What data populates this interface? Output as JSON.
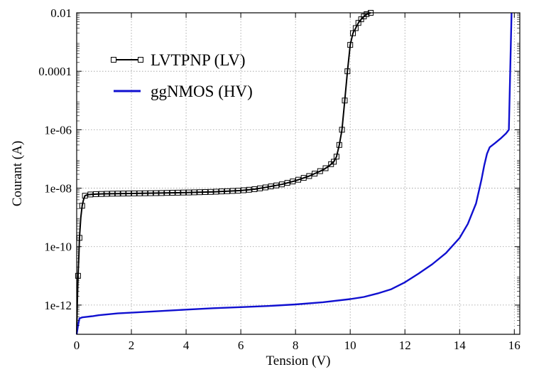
{
  "chart_data": {
    "type": "line",
    "xlabel": "Tension (V)",
    "ylabel": "Courant (A)",
    "x_scale": "linear",
    "y_scale": "log",
    "xlim": [
      0,
      16.2
    ],
    "ylim": [
      1e-13,
      0.01
    ],
    "x_ticks": [
      0,
      2,
      4,
      6,
      8,
      10,
      12,
      14,
      16
    ],
    "x_tick_labels": [
      "0",
      "2",
      "4",
      "6",
      "8",
      "10",
      "12",
      "14",
      "16"
    ],
    "y_ticks": [
      1e-12,
      1e-10,
      1e-08,
      1e-06,
      0.0001,
      0.01
    ],
    "y_tick_labels": [
      "1e-12",
      "1e-10",
      "1e-08",
      "1e-06",
      "0.0001",
      "0.01"
    ],
    "grid": true,
    "legend_position": "top-left",
    "series": [
      {
        "name": "LVTPNP (LV)",
        "color": "#000000",
        "marker": "square",
        "x": [
          0,
          0.02,
          0.05,
          0.08,
          0.1,
          0.15,
          0.2,
          0.25,
          0.3,
          0.4,
          0.6,
          0.8,
          1.0,
          1.5,
          2.0,
          3.0,
          4.0,
          5.0,
          6.0,
          6.5,
          7.0,
          7.5,
          8.0,
          8.5,
          9.0,
          9.2,
          9.4,
          9.5,
          9.6,
          9.7,
          9.8,
          9.9,
          10.0,
          10.1,
          10.2,
          10.3,
          10.4,
          10.5,
          10.6,
          10.75
        ],
        "y": [
          1e-13,
          1e-12,
          1e-11,
          5e-11,
          2e-10,
          1e-09,
          2.5e-09,
          4e-09,
          5.5e-09,
          6e-09,
          6.2e-09,
          6.3e-09,
          6.4e-09,
          6.5e-09,
          6.6e-09,
          6.8e-09,
          7.1e-09,
          7.5e-09,
          8.3e-09,
          9.2e-09,
          1.1e-08,
          1.35e-08,
          1.8e-08,
          2.6e-08,
          4.2e-08,
          5.5e-08,
          8e-08,
          1.2e-07,
          3e-07,
          1e-06,
          1e-05,
          0.0001,
          0.0008,
          0.002,
          0.003,
          0.0045,
          0.006,
          0.0075,
          0.009,
          0.01
        ],
        "x_markers": [
          0.05,
          0.1,
          0.2,
          0.3,
          0.5,
          0.7,
          0.9,
          1.1,
          1.3,
          1.5,
          1.7,
          1.9,
          2.1,
          2.3,
          2.5,
          2.7,
          2.9,
          3.1,
          3.3,
          3.5,
          3.7,
          3.9,
          4.1,
          4.3,
          4.5,
          4.7,
          4.9,
          5.1,
          5.3,
          5.5,
          5.7,
          5.9,
          6.1,
          6.3,
          6.5,
          6.7,
          6.9,
          7.1,
          7.3,
          7.5,
          7.7,
          7.9,
          8.1,
          8.3,
          8.5,
          8.7,
          8.9,
          9.1,
          9.3,
          9.4,
          9.5,
          9.6,
          9.7,
          9.8,
          9.9,
          10.0,
          10.1,
          10.2,
          10.3,
          10.4,
          10.5,
          10.6,
          10.75
        ]
      },
      {
        "name": "ggNMOS (HV)",
        "color": "#1010d0",
        "marker": "none",
        "x": [
          0,
          0.05,
          0.1,
          0.2,
          0.4,
          0.6,
          0.8,
          1.0,
          1.5,
          2.0,
          3.0,
          4.0,
          5.0,
          6.0,
          7.0,
          8.0,
          9.0,
          10.0,
          10.5,
          11.0,
          11.5,
          12.0,
          12.5,
          13.0,
          13.5,
          14.0,
          14.3,
          14.6,
          14.8,
          14.9,
          15.0,
          15.1,
          15.3,
          15.5,
          15.7,
          15.8,
          15.85,
          15.9
        ],
        "y": [
          1e-13,
          2e-13,
          3.5e-13,
          3.8e-13,
          4e-13,
          4.2e-13,
          4.5e-13,
          4.7e-13,
          5.2e-13,
          5.5e-13,
          6.2e-13,
          7e-13,
          7.8e-13,
          8.5e-13,
          9.3e-13,
          1.05e-12,
          1.25e-12,
          1.6e-12,
          1.9e-12,
          2.5e-12,
          3.5e-12,
          6e-12,
          1.2e-11,
          2.5e-11,
          6e-11,
          2e-10,
          6e-10,
          3e-09,
          2e-08,
          6e-08,
          1.5e-07,
          2.5e-07,
          3.5e-07,
          5e-07,
          7.5e-07,
          1e-06,
          0.0001,
          0.01
        ]
      }
    ]
  }
}
